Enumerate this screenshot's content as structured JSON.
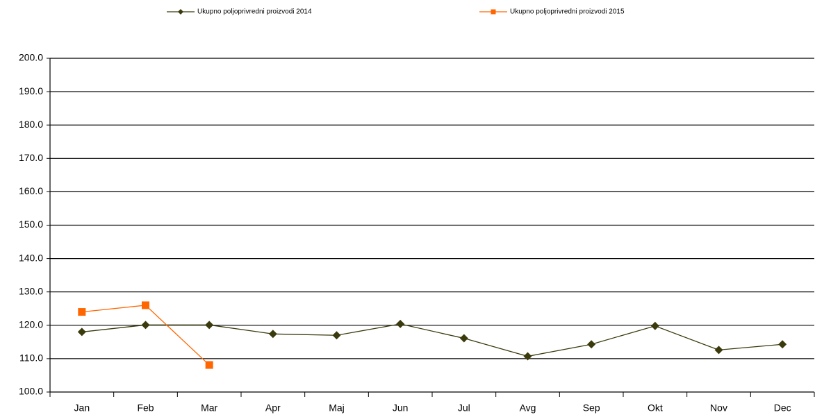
{
  "chart_data": {
    "type": "line",
    "categories": [
      "Jan",
      "Feb",
      "Mar",
      "Apr",
      "Maj",
      "Jun",
      "Jul",
      "Avg",
      "Sep",
      "Okt",
      "Nov",
      "Dec"
    ],
    "series": [
      {
        "name": "Ukupno poljoprivredni proizvodi  2014",
        "color": "#3a3a0c",
        "marker": "diamond",
        "values": [
          118.0,
          120.1,
          120.1,
          117.4,
          117.0,
          120.4,
          116.1,
          110.7,
          114.3,
          119.8,
          112.6,
          114.3
        ]
      },
      {
        "name": "Ukupno poljoprivredni proizvodi  2015",
        "color": "#ff6600",
        "marker": "square",
        "values": [
          124.0,
          126.0,
          108.1,
          null,
          null,
          null,
          null,
          null,
          null,
          null,
          null,
          null
        ]
      }
    ],
    "ylim": [
      100,
      200
    ],
    "yticks": [
      {
        "value": 100,
        "label": "100.0"
      },
      {
        "value": 110,
        "label": "110.0"
      },
      {
        "value": 120,
        "label": "120.0"
      },
      {
        "value": 130,
        "label": "130.0"
      },
      {
        "value": 140,
        "label": "140.0"
      },
      {
        "value": 150,
        "label": "150.0"
      },
      {
        "value": 160,
        "label": "160.0"
      },
      {
        "value": 170,
        "label": "170.0"
      },
      {
        "value": 180,
        "label": "180.0"
      },
      {
        "value": 190,
        "label": "190.0"
      },
      {
        "value": 200,
        "label": "200.0"
      }
    ],
    "grid": true,
    "legend": "top"
  }
}
